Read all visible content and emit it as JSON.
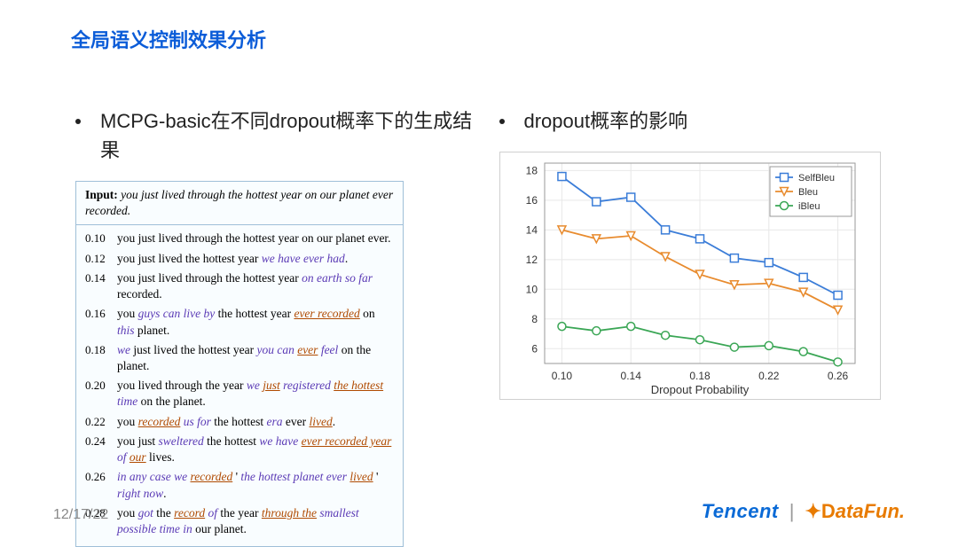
{
  "title": "全局语义控制效果分析",
  "left": {
    "bullet": "MCPG-basic在不同dropout概率下的生成结果",
    "input_label": "Input:",
    "input_text": "you just lived through the hottest year on our planet ever recorded.",
    "rows": [
      {
        "p": "0.10",
        "plain": "you just lived through the hottest year on our planet ever."
      },
      {
        "p": "0.12",
        "html": "you just lived the hottest year <span class='em1'>we have ever had</span>."
      },
      {
        "p": "0.14",
        "html": "you just lived through the hottest year <span class='em1'>on earth so far</span> recorded."
      },
      {
        "p": "0.16",
        "html": "you <span class='em1'>guys can live by</span> the hottest year <span class='em2'>ever recorded</span> on <span class='em1'>this</span> planet."
      },
      {
        "p": "0.18",
        "html": "<span class='em1'>we</span> just lived the hottest year <span class='em1'>you can</span> <span class='em2'>ever</span> <span class='em1'>feel</span> on the planet."
      },
      {
        "p": "0.20",
        "html": "you lived through the year <span class='em1'>we</span> <span class='em2'>just</span> <span class='em1'>registered</span> <span class='em2'>the hottest</span> <span class='em1'>time</span> on the planet."
      },
      {
        "p": "0.22",
        "html": "you <span class='em2'>recorded</span> <span class='em1'>us for</span> the hottest <span class='em1'>era</span> ever <span class='em2'>lived</span>."
      },
      {
        "p": "0.24",
        "html": "you just <span class='em1'>sweltered</span> the hottest <span class='em1'>we have</span> <span class='em2'>ever recorded year</span> <span class='em1'>of</span> <span class='em2'>our</span> lives."
      },
      {
        "p": "0.26",
        "html": "<span class='em1'>in any case we</span> <span class='em2'>recorded</span> ' <span class='em1'>the hottest planet ever</span> <span class='em2'>lived</span> ' <span class='em1'>right now</span>."
      },
      {
        "p": "0.28",
        "html": "you <span class='em1'>got</span> the <span class='em2'>record</span> <span class='em1'>of</span> the year <span class='em2'>through the</span> <span class='em1'>smallest possible time in</span> our planet."
      }
    ]
  },
  "right": {
    "bullet": "dropout概率的影响",
    "chart": {
      "type": "line",
      "xlabel": "Dropout Probability",
      "x_ticks": [
        0.1,
        0.14,
        0.18,
        0.22,
        0.26
      ],
      "y_ticks": [
        6,
        8,
        10,
        12,
        14,
        16,
        18
      ],
      "xlim": [
        0.09,
        0.27
      ],
      "ylim": [
        5,
        18.5
      ],
      "background_color": "#ffffff",
      "grid_color": "#e8e8e8",
      "axis_fontsize": 12,
      "label_fontsize": 13,
      "series": [
        {
          "name": "SelfBleu",
          "color": "#3b7dd8",
          "marker": "square",
          "x": [
            0.1,
            0.12,
            0.14,
            0.16,
            0.18,
            0.2,
            0.22,
            0.24,
            0.26
          ],
          "y": [
            17.6,
            15.9,
            16.2,
            14.0,
            13.4,
            12.1,
            11.8,
            10.8,
            9.6
          ]
        },
        {
          "name": "Bleu",
          "color": "#e88b2e",
          "marker": "triangle-down",
          "x": [
            0.1,
            0.12,
            0.14,
            0.16,
            0.18,
            0.2,
            0.22,
            0.24,
            0.26
          ],
          "y": [
            14.0,
            13.4,
            13.6,
            12.2,
            11.0,
            10.3,
            10.4,
            9.8,
            8.6
          ]
        },
        {
          "name": "iBleu",
          "color": "#3aa655",
          "marker": "circle",
          "x": [
            0.1,
            0.12,
            0.14,
            0.16,
            0.18,
            0.2,
            0.22,
            0.24,
            0.26
          ],
          "y": [
            7.5,
            7.2,
            7.5,
            6.9,
            6.6,
            6.1,
            6.2,
            5.8,
            5.1
          ]
        }
      ]
    }
  },
  "footer": {
    "page": "12/17/22",
    "tencent": "Tencent",
    "datafun_prefix": "D",
    "datafun_rest": "ataFun."
  }
}
